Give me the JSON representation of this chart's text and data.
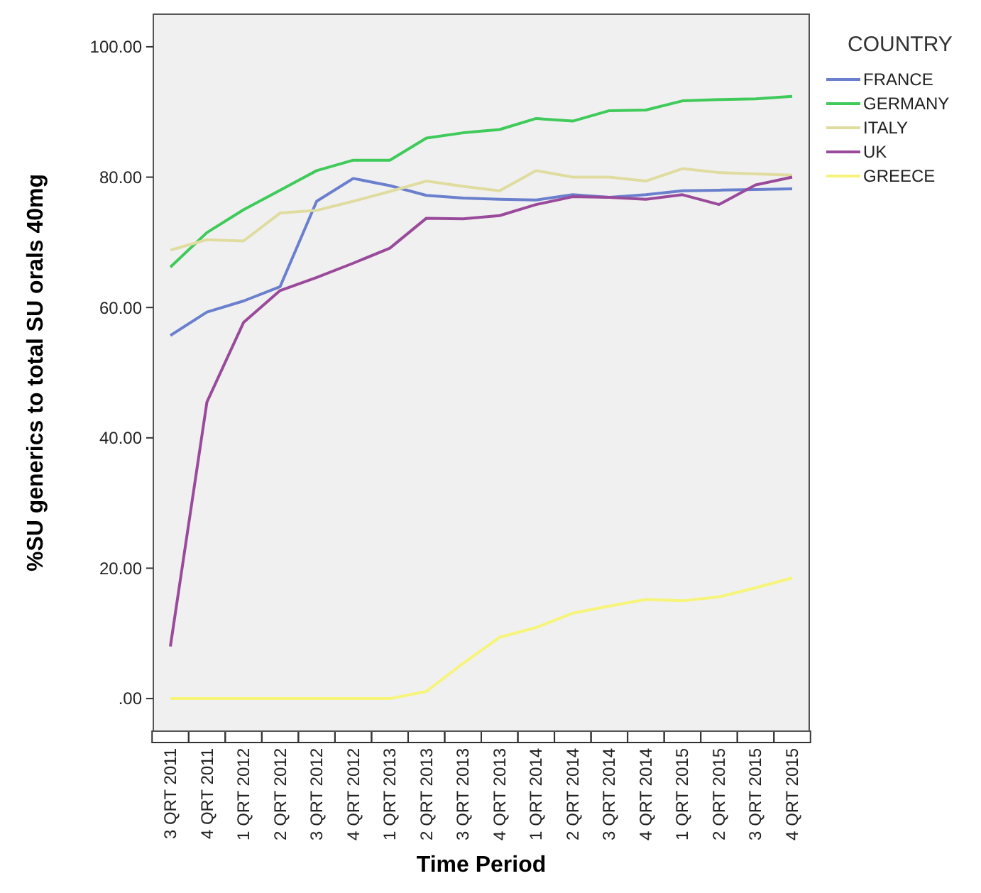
{
  "chart_data": {
    "type": "line",
    "xlabel": "Time Period",
    "ylabel": "%SU generics to total SU orals 40mg",
    "legend_title": "COUNTRY",
    "legend": "right",
    "grid": false,
    "line_style": "solid",
    "marker": "none",
    "categories": [
      "3 QRT 2011",
      "4 QRT 2011",
      "1 QRT 2012",
      "2 QRT 2012",
      "3 QRT 2012",
      "4 QRT 2012",
      "1 QRT 2013",
      "2 QRT 2013",
      "3 QRT 2013",
      "4 QRT 2013",
      "1 QRT 2014",
      "2 QRT 2014",
      "3 QRT 2014",
      "4 QRT 2014",
      "1 QRT 2015",
      "2 QRT 2015",
      "3 QRT 2015",
      "4 QRT 2015"
    ],
    "ylim": [
      -5,
      105
    ],
    "yticks": [
      {
        "value": 0,
        "label": ".00"
      },
      {
        "value": 20,
        "label": "20.00"
      },
      {
        "value": 40,
        "label": "40.00"
      },
      {
        "value": 60,
        "label": "60.00"
      },
      {
        "value": 80,
        "label": "80.00"
      },
      {
        "value": 100,
        "label": "100.00"
      }
    ],
    "series": [
      {
        "name": "FRANCE",
        "color": "#6a7fcd",
        "values": [
          55.7,
          59.3,
          61,
          63.2,
          76.3,
          79.8,
          78.7,
          77.2,
          76.8,
          76.6,
          76.5,
          77.3,
          76.9,
          77.3,
          77.9,
          78,
          78.1,
          78.2
        ]
      },
      {
        "name": "GERMANY",
        "color": "#3fca5a",
        "values": [
          66.2,
          71.5,
          75,
          78,
          81,
          82.6,
          82.6,
          86,
          86.8,
          87.3,
          89,
          88.6,
          90.2,
          90.3,
          91.7,
          91.9,
          92,
          92.4
        ]
      },
      {
        "name": "ITALY",
        "color": "#e0dca0",
        "values": [
          68.8,
          70.4,
          70.2,
          74.5,
          74.9,
          76.3,
          77.8,
          79.4,
          78.6,
          77.9,
          81,
          80,
          80,
          79.4,
          81.3,
          80.7,
          80.5,
          80.3
        ]
      },
      {
        "name": "UK",
        "color": "#9a4a9a",
        "values": [
          8,
          45.5,
          57.7,
          62.6,
          64.6,
          66.8,
          69.1,
          73.7,
          73.6,
          74.1,
          75.8,
          77,
          76.9,
          76.6,
          77.3,
          75.8,
          78.8,
          80
        ]
      },
      {
        "name": "GREECE",
        "color": "#f7f47a",
        "values": [
          0,
          0,
          0,
          0,
          0,
          0,
          0,
          1.1,
          5.4,
          9.4,
          10.9,
          13.1,
          14.2,
          15.2,
          15,
          15.6,
          17,
          18.5
        ]
      }
    ]
  }
}
